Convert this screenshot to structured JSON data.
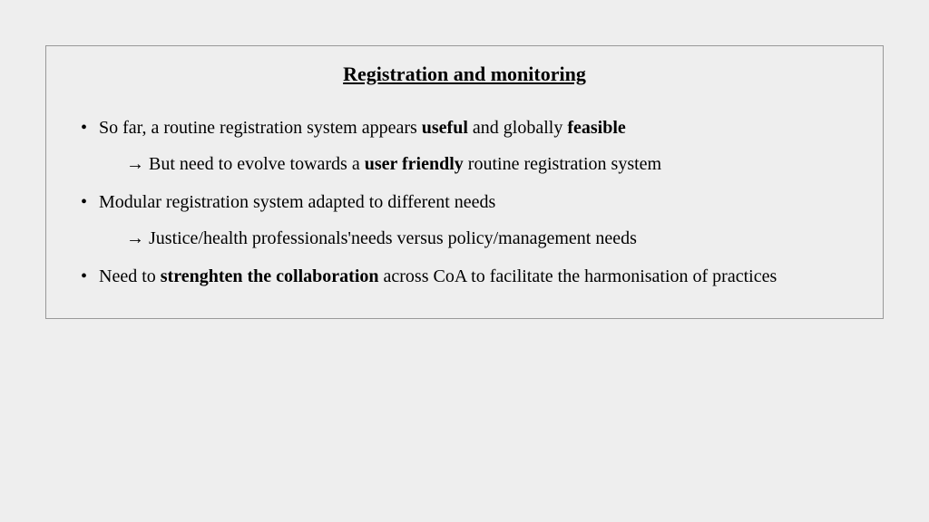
{
  "slide": {
    "title": "Registration and monitoring",
    "border_color": "#999999",
    "background_color": "#eeeeee",
    "text_color": "#000000",
    "title_fontsize": 22,
    "body_fontsize": 20,
    "arrow_glyph": "→",
    "bullets": [
      {
        "runs": [
          {
            "t": "So far, a routine registration system appears ",
            "b": false
          },
          {
            "t": "useful",
            "b": true
          },
          {
            "t": " and globally ",
            "b": false
          },
          {
            "t": "feasible",
            "b": true
          }
        ],
        "sub": {
          "runs": [
            {
              "t": " But  need to evolve towards a ",
              "b": false
            },
            {
              "t": "user friendly",
              "b": true
            },
            {
              "t": " routine registration system",
              "b": false
            }
          ]
        }
      },
      {
        "runs": [
          {
            "t": "Modular registration system adapted to different needs",
            "b": false
          }
        ],
        "sub": {
          "runs": [
            {
              "t": " Justice/health professionals'needs versus policy/management needs",
              "b": false
            }
          ]
        }
      },
      {
        "runs": [
          {
            "t": "Need to ",
            "b": false
          },
          {
            "t": "strenghten the collaboration",
            "b": true
          },
          {
            "t": " across CoA to facilitate the harmonisation of practices",
            "b": false
          }
        ]
      }
    ]
  }
}
